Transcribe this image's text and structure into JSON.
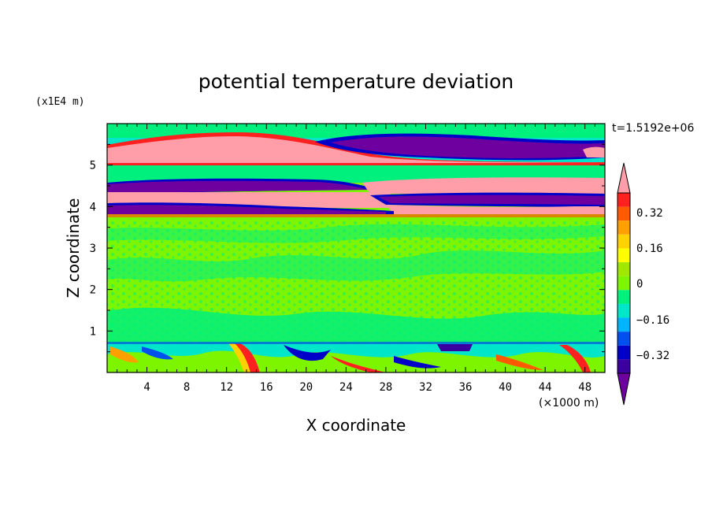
{
  "chart_data": {
    "type": "heatmap",
    "title": "potential temperature deviation",
    "xlabel": "X coordinate",
    "ylabel": "Z coordinate",
    "x_unit": "(×1000 m)",
    "y_unit": "(x1E4 m)",
    "time_label": "t=1.5192e+06",
    "xlim": [
      0,
      50
    ],
    "ylim": [
      0,
      6
    ],
    "x_ticks": [
      "4",
      "8",
      "12",
      "16",
      "20",
      "24",
      "28",
      "32",
      "36",
      "40",
      "44",
      "48"
    ],
    "y_ticks": [
      "1",
      "2",
      "3",
      "4",
      "5"
    ],
    "colorbar": {
      "labels": [
        "0.32",
        "0.16",
        "0",
        "−0.16",
        "−0.32"
      ],
      "level_colors": [
        "#ff9da8",
        "#ff2020",
        "#ff5a00",
        "#ffa000",
        "#ffd200",
        "#ffff00",
        "#a0e800",
        "#7ef500",
        "#00f07d",
        "#00e6c8",
        "#00b4ff",
        "#0050f0",
        "#0000c8",
        "#3c00a0",
        "#6e00a0"
      ],
      "extends": "both"
    },
    "layers": [
      {
        "z": [
          0.0,
          0.7
        ],
        "field": "turbulent boundary layer, mixed values"
      },
      {
        "z": [
          3.8,
          4.0
        ],
        "level": -0.4
      },
      {
        "z": [
          4.0,
          4.3
        ],
        "level": 0.4
      },
      {
        "z": [
          4.3,
          4.6
        ],
        "level": -0.4
      },
      {
        "z": [
          5.1,
          5.6
        ],
        "level": 0.4
      },
      {
        "z": [
          5.1,
          5.7
        ],
        "level": -0.4
      }
    ]
  }
}
